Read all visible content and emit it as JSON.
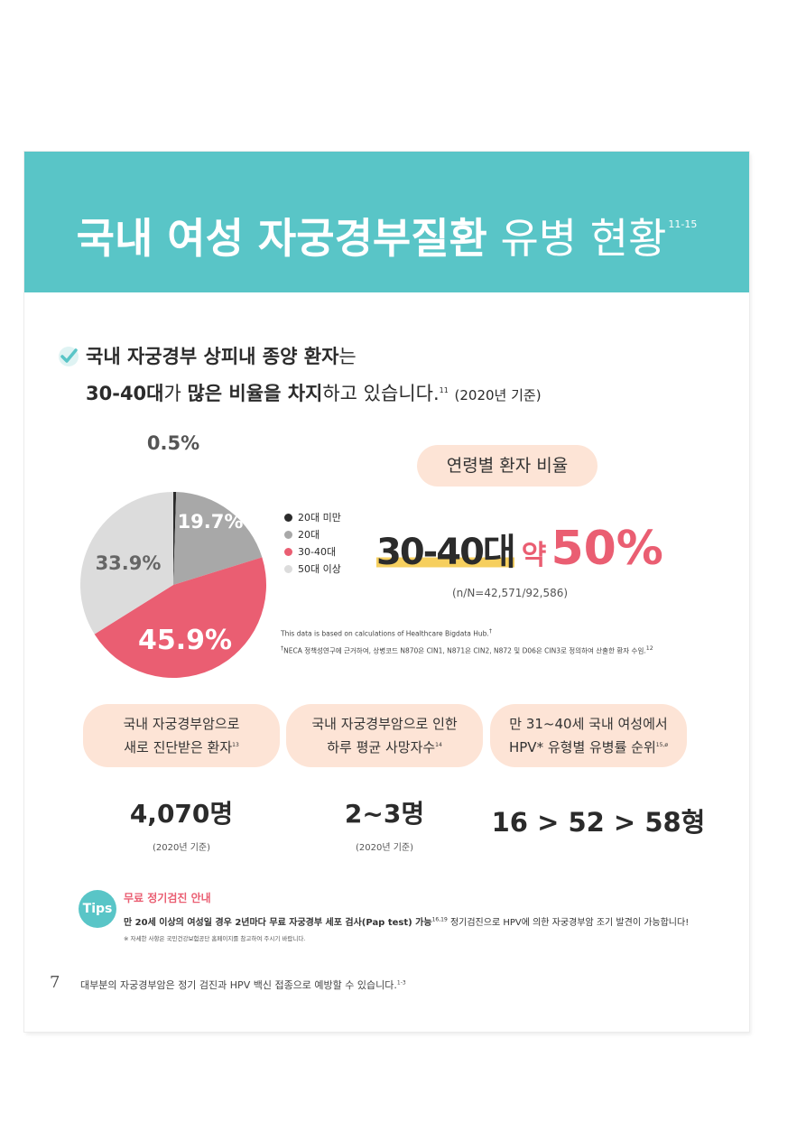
{
  "banner": {
    "title_bold": "국내 여성 자궁경부질환",
    "title_normal": "유병 현황",
    "title_sup": "11-15"
  },
  "headline": {
    "line1_bold": "국내 자궁경부 상피내 종양 환자",
    "line1_rest": "는",
    "line2_a": "30-40대",
    "line2_b": "가 ",
    "line2_c": "많은 비율을 차지",
    "line2_d": "하고 있습니다.",
    "line2_sup": "11",
    "line2_note": "(2020년 기준)"
  },
  "chart_data": {
    "type": "pie",
    "slices": [
      {
        "label": "20대 미만",
        "value": 0.5,
        "display": "0.5%",
        "color": "#2b2b2b"
      },
      {
        "label": "20대",
        "value": 19.7,
        "display": "19.7%",
        "color": "#a8a8a8"
      },
      {
        "label": "30-40대",
        "value": 45.9,
        "display": "45.9%",
        "color": "#ea5e72"
      },
      {
        "label": "50대 이상",
        "value": 33.9,
        "display": "33.9%",
        "color": "#dcdcdc"
      }
    ]
  },
  "ratio": {
    "pill_label": "연령별 환자 비율",
    "age": "30-40대",
    "approx": "약",
    "pct": "50%",
    "n_fraction": "(n/N=42,571/92,586)"
  },
  "sources": {
    "line1": "This data is based on calculations of Healthcare Bigdata Hub.",
    "line1_sup": "†",
    "line2": "NECA 정책성연구에 근거하여, 상병코드 N870은 CIN1, N871은 CIN2, N872 및 D06은 CIN3로 정의하여 산출한 환자 수임.",
    "line2_prefix": "†",
    "line2_sup": "12"
  },
  "stats": [
    {
      "line1": "국내 자궁경부암으로",
      "line2": "새로 진단받은 환자",
      "sup": "13",
      "value": "4,070명",
      "note": "(2020년 기준)"
    },
    {
      "line1": "국내 자궁경부암으로 인한",
      "line2": "하루 평균 사망자수",
      "sup": "14",
      "value": "2~3명",
      "note": "(2020년 기준)"
    },
    {
      "line1": "만 31~40세 국내 여성에서",
      "line2": "HPV* 유형별 유병률 순위",
      "sup": "15,ø",
      "value": "16 > 52 > 58형",
      "note": ""
    }
  ],
  "tips": {
    "badge": "Tips",
    "title": "무료 정기검진 안내",
    "body_bold": "만 20세 이상의 여성일 경우 2년마다 무료 자궁경부 세포 검사(Pap test) 가능",
    "body_sup": "16,19",
    "body_rest": " 정기검진으로 HPV에 의한 자궁경부암 조기 발견이 가능합니다!",
    "note": "※ 자세한 사항은 국민건강보험공단 홈페이지를 참고하여 주시기 바랍니다."
  },
  "footer": {
    "page": "7",
    "text": "대부분의 자궁경부암은 정기 검진과 HPV 백신 접종으로 예방할 수 있습니다.",
    "sup": "1-3"
  },
  "colors": {
    "teal": "#59c5c7",
    "pink": "#ea5e72",
    "peach": "#fde4d6",
    "highlight": "#f6cf5e"
  }
}
